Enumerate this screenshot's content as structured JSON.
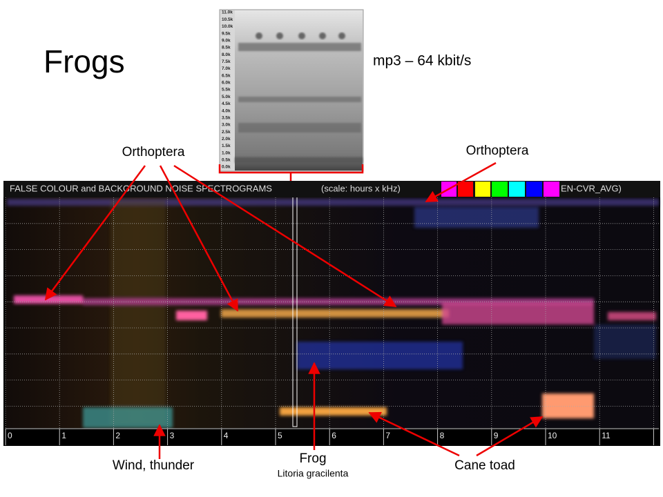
{
  "title": "Frogs",
  "codec_label": "mp3 – 64 kbit/s",
  "inset_spectrogram": {
    "frequency_labels": [
      "11.0k",
      "10.5k",
      "10.0k",
      "9.5k",
      "9.0k",
      "8.5k",
      "8.0k",
      "7.5k",
      "7.0k",
      "6.5k",
      "6.0k",
      "5.5k",
      "5.0k",
      "4.5k",
      "4.0k",
      "3.5k",
      "3.0k",
      "2.5k",
      "2.0k",
      "1.5k",
      "1.0k",
      "0.5k",
      "0.0k"
    ]
  },
  "false_colour_spectrogram": {
    "header": "FALSE COLOUR and BACKGROUND NOISE SPECTROGRAMS",
    "scale_note": "(scale: hours x kHz)",
    "index_label": "EN-CVR_AVG)",
    "hour_labels": [
      "0",
      "1",
      "2",
      "3",
      "4",
      "5",
      "6",
      "7",
      "8",
      "9",
      "10",
      "11"
    ]
  },
  "annotations": {
    "orthoptera_left": "Orthoptera",
    "orthoptera_right": "Orthoptera",
    "wind": "Wind, thunder",
    "frog": "Frog",
    "frog_species": "Litoria gracilenta",
    "cane_toad": "Cane toad"
  }
}
